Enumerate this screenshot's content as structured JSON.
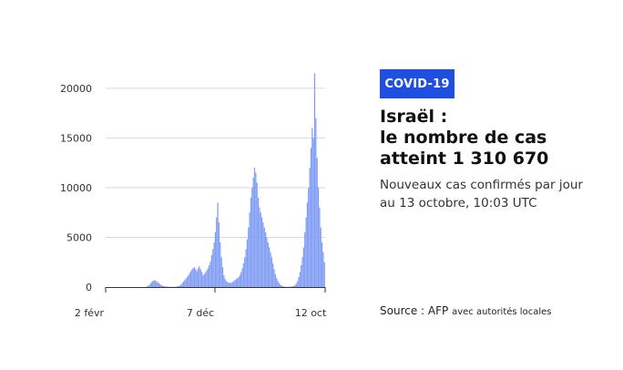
{
  "badge": "COVID-19",
  "title_lines": [
    "Israël :",
    "le nombre de cas",
    "atteint 1 310 670"
  ],
  "subtitle_lines": [
    "Nouveaux cas confirmés par jour",
    "au 13 octobre, 10:03 UTC"
  ],
  "source": {
    "label": "Source : AFP",
    "detail": "avec autorités locales"
  },
  "colors": {
    "bars": "#7f9cf5",
    "badge": "#1f4fe0",
    "grid": "#d9d9d9",
    "axis": "#333333"
  },
  "chart_data": {
    "type": "bar",
    "title": "",
    "xlabel": "",
    "ylabel": "",
    "ylim": [
      0,
      22000
    ],
    "yticks": [
      0,
      5000,
      10000,
      15000,
      20000
    ],
    "ytick_labels": [
      "0",
      "5000",
      "10000",
      "15000",
      "20000"
    ],
    "xtick_labels": [
      "2 févr",
      "7 déc",
      "12 oct"
    ],
    "x_range": [
      "2020-02-02",
      "2021-10-12"
    ],
    "grid": true,
    "series": [
      {
        "values": [
          0,
          0,
          0,
          0,
          0,
          0,
          0,
          0,
          0,
          0,
          0,
          0,
          0,
          0,
          0,
          0,
          0,
          0,
          0,
          0,
          0,
          0,
          0,
          0,
          0,
          0,
          0,
          0,
          0,
          0,
          0,
          0,
          10,
          40,
          100,
          200,
          350,
          500,
          600,
          700,
          650,
          600,
          500,
          400,
          300,
          200,
          150,
          100,
          70,
          50,
          40,
          30,
          25,
          20,
          20,
          20,
          30,
          40,
          60,
          100,
          150,
          250,
          400,
          550,
          700,
          850,
          1000,
          1200,
          1400,
          1600,
          1800,
          1900,
          2000,
          1800,
          1600,
          1900,
          2100,
          1800,
          1500,
          1200,
          1300,
          1500,
          1700,
          1900,
          2200,
          2600,
          3200,
          3800,
          4500,
          5500,
          7000,
          8500,
          6500,
          4500,
          3000,
          2000,
          1200,
          800,
          600,
          500,
          450,
          400,
          450,
          500,
          600,
          700,
          800,
          900,
          1000,
          1200,
          1500,
          1900,
          2400,
          3000,
          3800,
          4800,
          6000,
          7500,
          9000,
          10000,
          11000,
          12000,
          11500,
          10500,
          9000,
          8000,
          7500,
          7000,
          6500,
          6000,
          5500,
          5000,
          4500,
          4000,
          3500,
          3000,
          2400,
          1800,
          1300,
          900,
          600,
          400,
          250,
          150,
          100,
          60,
          40,
          30,
          20,
          20,
          30,
          50,
          80,
          120,
          200,
          350,
          600,
          1000,
          1500,
          2200,
          3000,
          4000,
          5500,
          7000,
          8500,
          10000,
          12000,
          14000,
          16000,
          15000,
          21500,
          17000,
          13000,
          10000,
          8000,
          6000,
          4500,
          3500,
          2500
        ]
      }
    ]
  }
}
